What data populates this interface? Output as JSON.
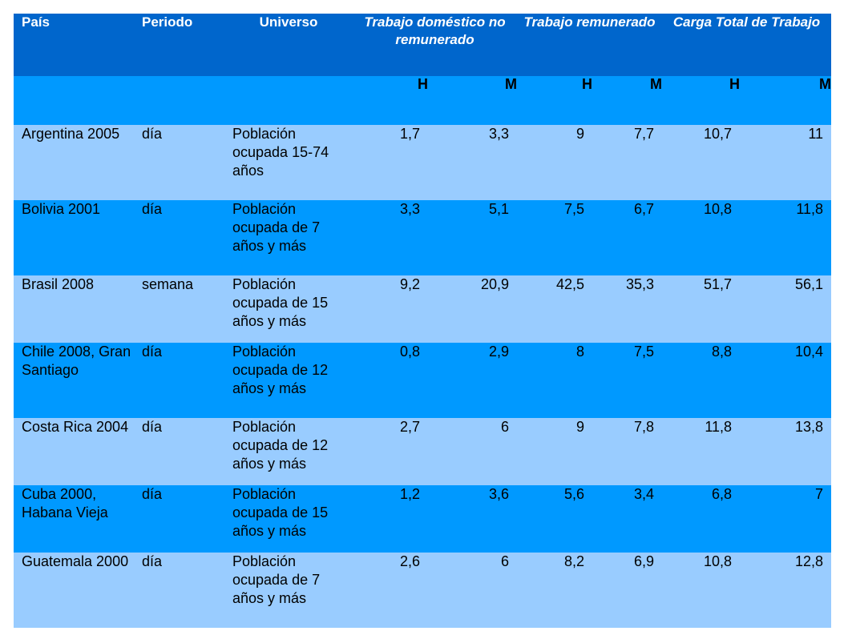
{
  "headers": {
    "pais": "País",
    "periodo": "Periodo",
    "universo": "Universo",
    "trabajo_domestico": "Trabajo doméstico no remunerado",
    "trabajo_remunerado": "Trabajo remunerado",
    "carga_total": "Carga Total de Trabajo"
  },
  "subheaders": [
    "H",
    "M",
    "H",
    "M",
    "H",
    "M"
  ],
  "rows": [
    {
      "pais": "Argentina 2005",
      "periodo": "día",
      "universo": "Población ocupada 15-74 años",
      "values": [
        "1,7",
        "3,3",
        "9",
        "7,7",
        "10,7",
        "11"
      ]
    },
    {
      "pais": "Bolivia 2001",
      "periodo": "día",
      "universo": "Población ocupada de 7 años y más",
      "values": [
        "3,3",
        "5,1",
        "7,5",
        "6,7",
        "10,8",
        "11,8"
      ]
    },
    {
      "pais": "Brasil 2008",
      "periodo": "semana",
      "universo": "Población ocupada de 15 años y más",
      "values": [
        "9,2",
        "20,9",
        "42,5",
        "35,3",
        "51,7",
        "56,1"
      ]
    },
    {
      "pais": "Chile 2008, Gran Santiago",
      "periodo": "día",
      "universo": "Población ocupada de 12 años y más",
      "values": [
        "0,8",
        "2,9",
        "8",
        "7,5",
        "8,8",
        "10,4"
      ]
    },
    {
      "pais": "Costa Rica 2004",
      "periodo": "día",
      "universo": "Población ocupada de 12 años y más",
      "values": [
        "2,7",
        "6",
        "9",
        "7,8",
        "11,8",
        "13,8"
      ]
    },
    {
      "pais": "Cuba 2000, Habana Vieja",
      "periodo": "día",
      "universo": "Población ocupada de 15 años y más",
      "values": [
        "1,2",
        "3,6",
        "5,6",
        "3,4",
        "6,8",
        "7"
      ]
    },
    {
      "pais": "Guatemala 2000",
      "periodo": "día",
      "universo": "Población ocupada de 7 años y más",
      "values": [
        "2,6",
        "6",
        "8,2",
        "6,9",
        "10,8",
        "12,8"
      ]
    }
  ],
  "colors": {
    "header_bg": "#0066cc",
    "subheader_bg": "#0099ff",
    "row_light": "#99ccff",
    "row_dark": "#0099ff"
  }
}
